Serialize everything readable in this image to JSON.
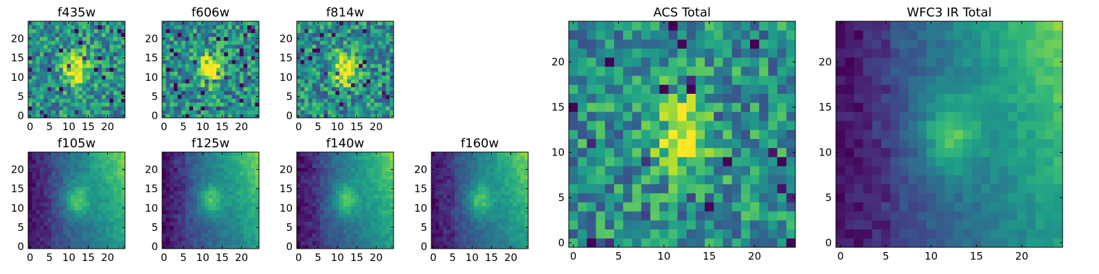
{
  "colormap": {
    "name": "viridis",
    "stops": [
      "#440154",
      "#482878",
      "#3e4a89",
      "#31688e",
      "#26828e",
      "#1f9e89",
      "#35b779",
      "#6ece58",
      "#b5de2b",
      "#fde725"
    ]
  },
  "chart_data": [
    {
      "type": "heatmap",
      "title": "f435w",
      "grid_size": 25,
      "xticks": [
        0,
        5,
        10,
        15,
        20
      ],
      "yticks": [
        0,
        5,
        10,
        15,
        20
      ],
      "xlim": [
        -0.5,
        24.5
      ],
      "ylim": [
        -0.5,
        24.5
      ],
      "pattern": "noise_blob",
      "blob_center": [
        12,
        12
      ]
    },
    {
      "type": "heatmap",
      "title": "f606w",
      "grid_size": 25,
      "xticks": [
        0,
        5,
        10,
        15,
        20
      ],
      "yticks": [
        0,
        5,
        10,
        15,
        20
      ],
      "xlim": [
        -0.5,
        24.5
      ],
      "ylim": [
        -0.5,
        24.5
      ],
      "pattern": "noise_blob",
      "blob_center": [
        12,
        12
      ]
    },
    {
      "type": "heatmap",
      "title": "f814w",
      "grid_size": 25,
      "xticks": [
        0,
        5,
        10,
        15,
        20
      ],
      "yticks": [
        0,
        5,
        10,
        15,
        20
      ],
      "xlim": [
        -0.5,
        24.5
      ],
      "ylim": [
        -0.5,
        24.5
      ],
      "pattern": "noise_blob",
      "blob_center": [
        12,
        12
      ]
    },
    {
      "type": "heatmap",
      "title": "f105w",
      "grid_size": 25,
      "xticks": [
        0,
        5,
        10,
        15,
        20
      ],
      "yticks": [
        0,
        5,
        10,
        15,
        20
      ],
      "xlim": [
        -0.5,
        24.5
      ],
      "ylim": [
        -0.5,
        24.5
      ],
      "pattern": "gradient_blob",
      "blob_center": [
        12,
        12
      ]
    },
    {
      "type": "heatmap",
      "title": "f125w",
      "grid_size": 25,
      "xticks": [
        0,
        5,
        10,
        15,
        20
      ],
      "yticks": [
        0,
        5,
        10,
        15,
        20
      ],
      "xlim": [
        -0.5,
        24.5
      ],
      "ylim": [
        -0.5,
        24.5
      ],
      "pattern": "gradient_blob",
      "blob_center": [
        12,
        12
      ]
    },
    {
      "type": "heatmap",
      "title": "f140w",
      "grid_size": 25,
      "xticks": [
        0,
        5,
        10,
        15,
        20
      ],
      "yticks": [
        0,
        5,
        10,
        15,
        20
      ],
      "xlim": [
        -0.5,
        24.5
      ],
      "ylim": [
        -0.5,
        24.5
      ],
      "pattern": "gradient_blob",
      "blob_center": [
        12,
        12
      ]
    },
    {
      "type": "heatmap",
      "title": "f160w",
      "grid_size": 25,
      "xticks": [
        0,
        5,
        10,
        15,
        20
      ],
      "yticks": [
        0,
        5,
        10,
        15,
        20
      ],
      "xlim": [
        -0.5,
        24.5
      ],
      "ylim": [
        -0.5,
        24.5
      ],
      "pattern": "gradient_blob",
      "blob_center": [
        12,
        12
      ]
    },
    {
      "type": "heatmap",
      "title": "ACS Total",
      "grid_size": 25,
      "xticks": [
        0,
        5,
        10,
        15,
        20
      ],
      "yticks": [
        0,
        5,
        10,
        15,
        20
      ],
      "xlim": [
        -0.5,
        24.5
      ],
      "ylim": [
        -0.5,
        24.5
      ],
      "pattern": "noise_blob",
      "blob_center": [
        12,
        12
      ]
    },
    {
      "type": "heatmap",
      "title": "WFC3 IR Total",
      "grid_size": 25,
      "xticks": [
        0,
        5,
        10,
        15,
        20
      ],
      "yticks": [
        0,
        5,
        10,
        15,
        20
      ],
      "xlim": [
        -0.5,
        24.5
      ],
      "ylim": [
        -0.5,
        24.5
      ],
      "pattern": "gradient_blob",
      "blob_center": [
        12,
        12
      ]
    }
  ]
}
